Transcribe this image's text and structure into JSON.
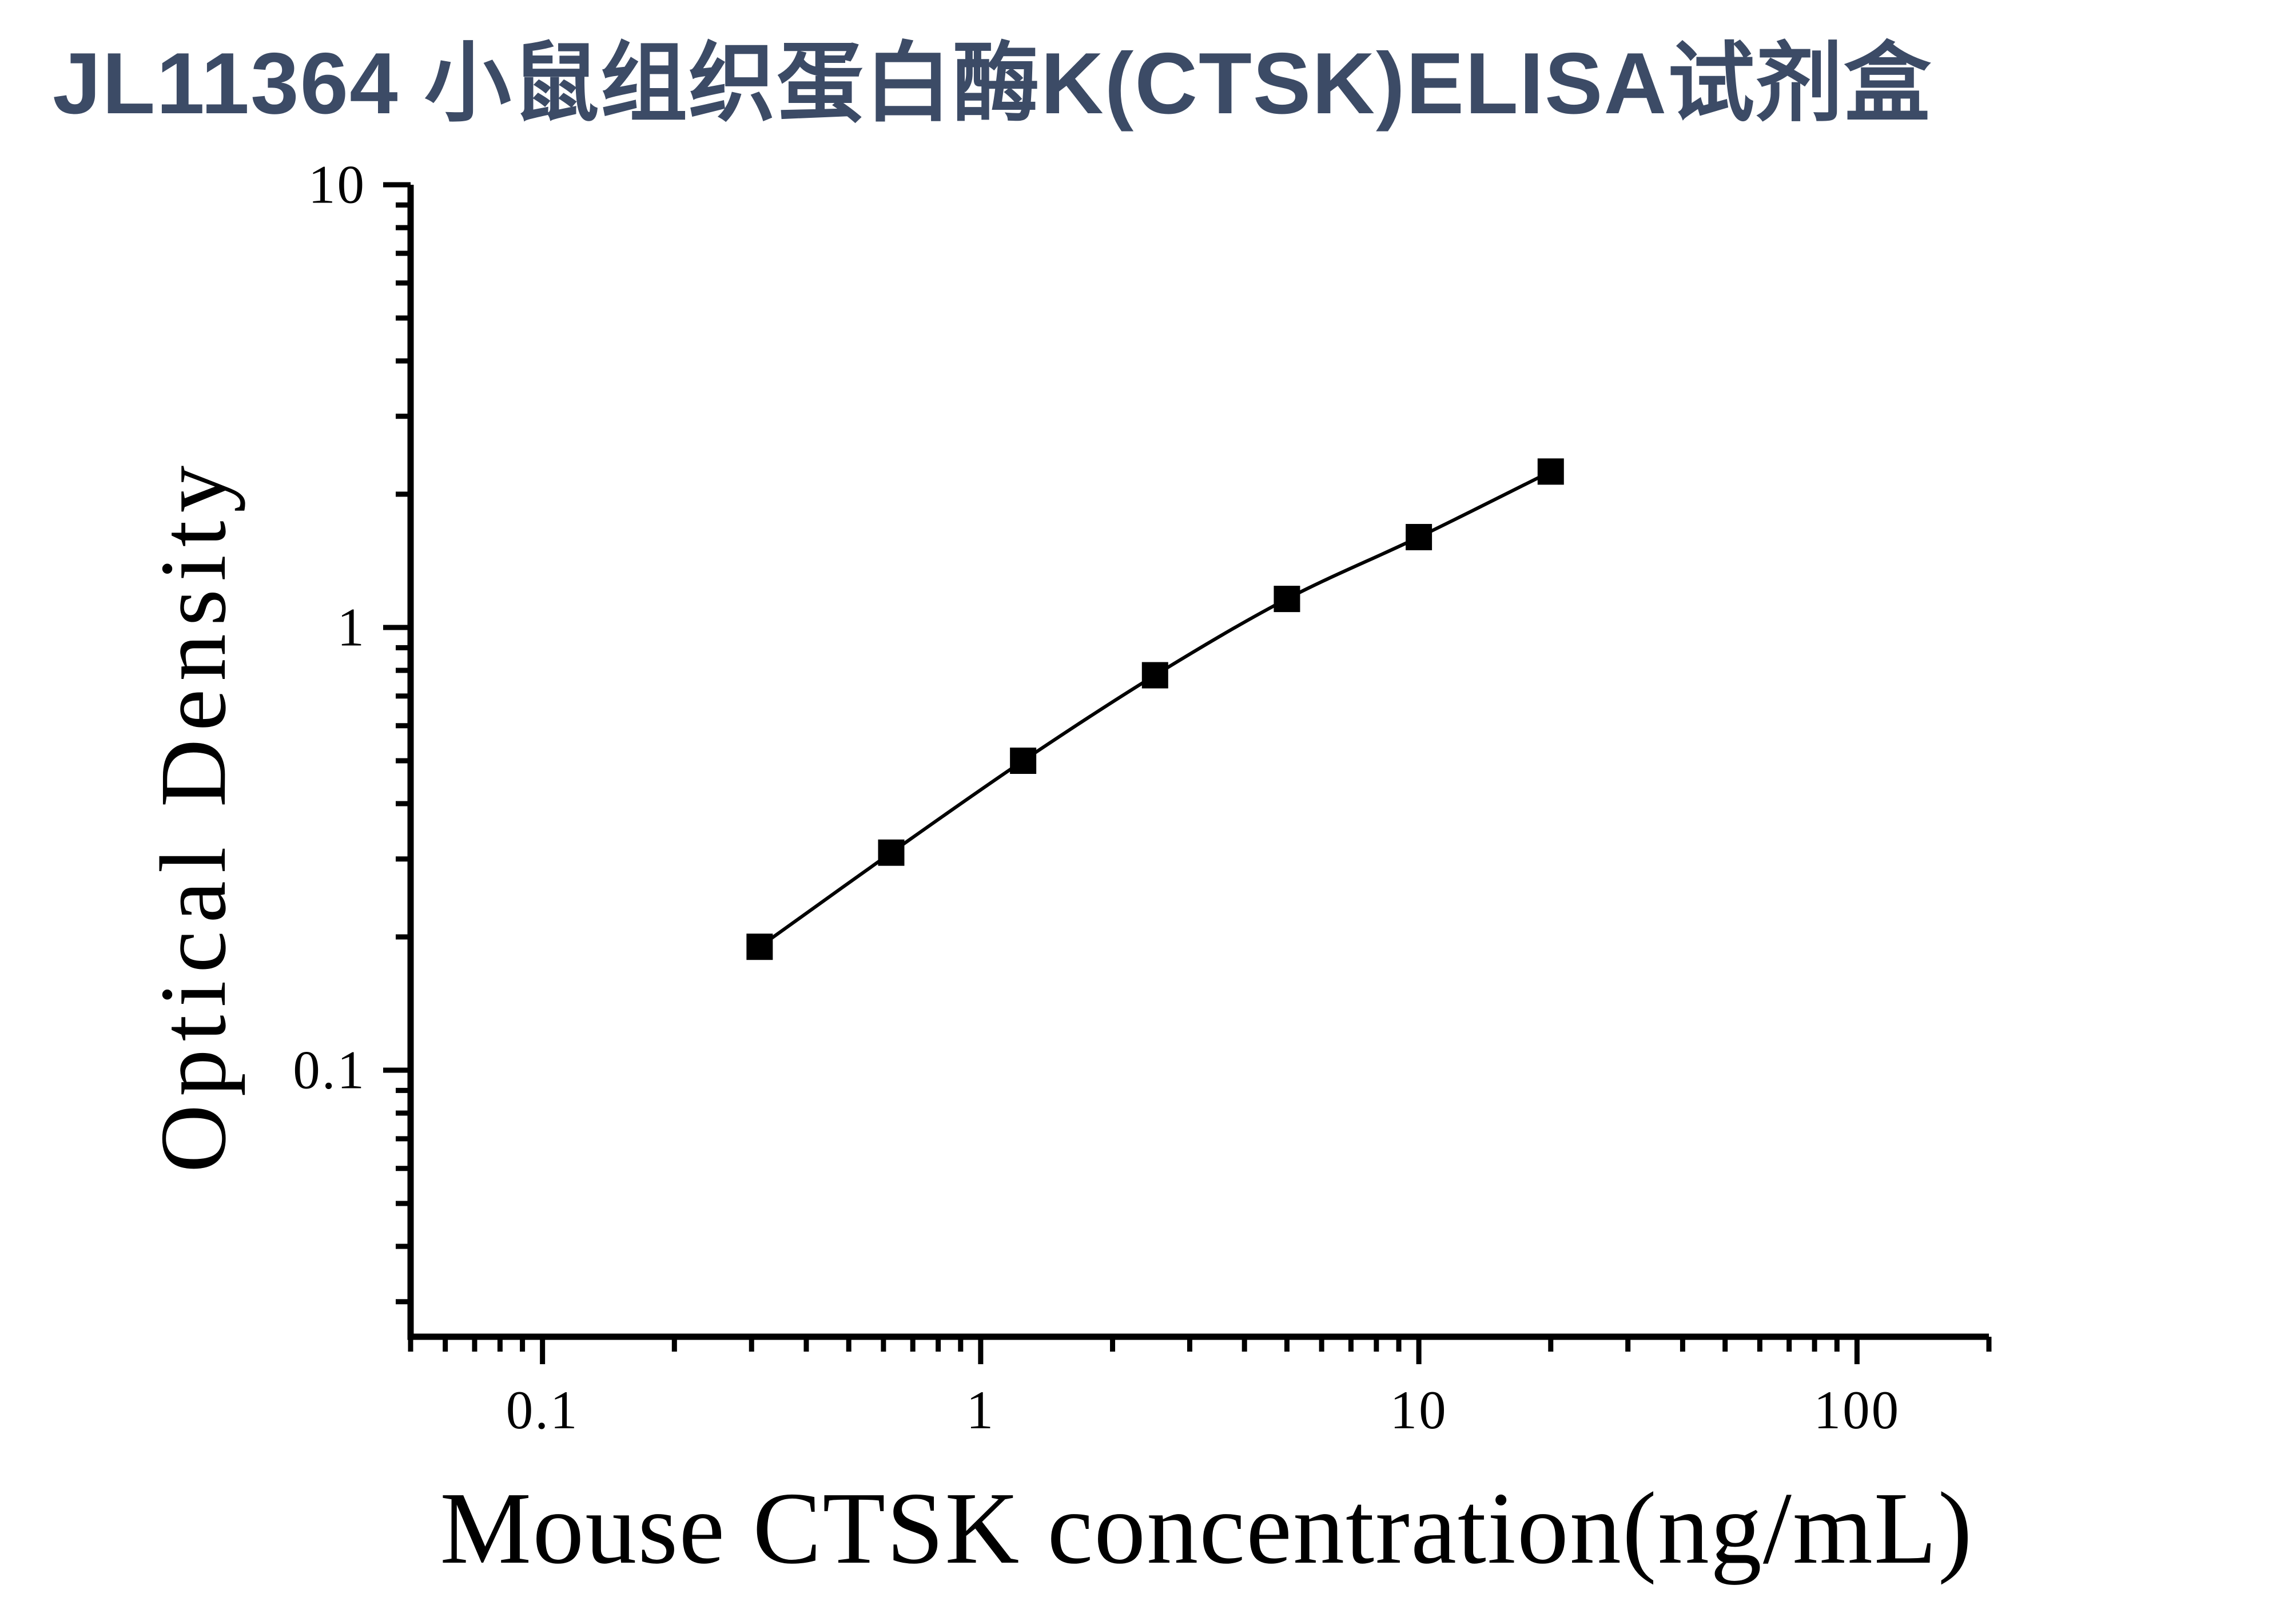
{
  "title": {
    "text": "JL11364 小鼠组织蛋白酶K(CTSK)ELISA试剂盒",
    "color": "#3c4b66"
  },
  "chart_data": {
    "type": "line",
    "subtype": "standard-curve-scatter-with-line",
    "title": "",
    "xlabel": "Mouse CTSK concentration(ng/mL)",
    "ylabel": "Optical Density",
    "x_scale": "log",
    "y_scale": "log",
    "xlim": [
      0.05,
      200
    ],
    "ylim": [
      0.025,
      10
    ],
    "x_major_ticks": [
      0.1,
      1,
      10,
      100
    ],
    "x_tick_labels": [
      "0.1",
      "1",
      "10",
      "100"
    ],
    "y_major_ticks": [
      10,
      1,
      0.1
    ],
    "y_tick_labels": [
      "10",
      "1",
      "0.1"
    ],
    "grid": false,
    "legend": false,
    "series": [
      {
        "name": "standard-curve",
        "marker": "square",
        "color": "#000000",
        "points": [
          {
            "x": 0.313,
            "y": 0.19
          },
          {
            "x": 0.625,
            "y": 0.31
          },
          {
            "x": 1.25,
            "y": 0.5
          },
          {
            "x": 2.5,
            "y": 0.78
          },
          {
            "x": 5,
            "y": 1.16
          },
          {
            "x": 10,
            "y": 1.6
          },
          {
            "x": 20,
            "y": 2.25
          }
        ]
      }
    ]
  }
}
